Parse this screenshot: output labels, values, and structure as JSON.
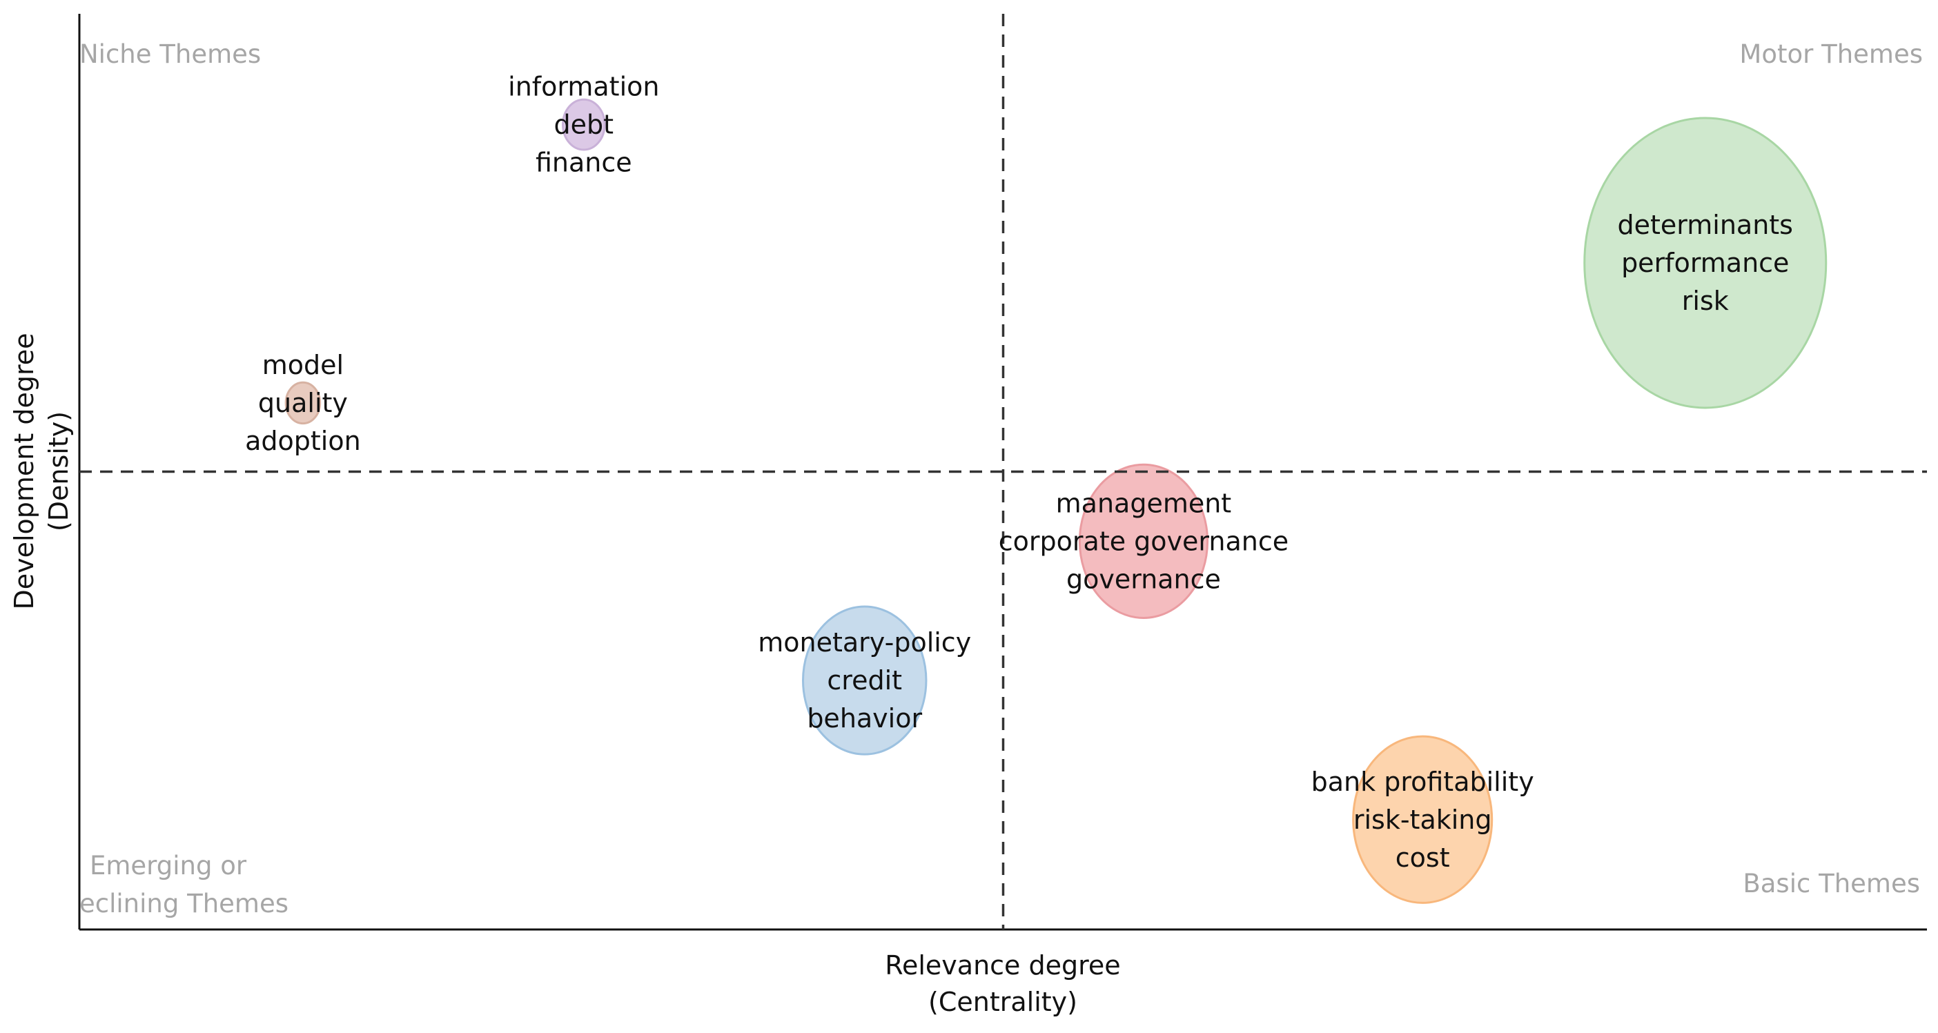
{
  "chart_data": {
    "type": "scatter",
    "title": "",
    "xlabel": [
      "Relevance degree",
      "(Centrality)"
    ],
    "ylabel": [
      "Development degree",
      "(Density)"
    ],
    "xlim": [
      0,
      1
    ],
    "ylim": [
      0,
      1
    ],
    "divider_x": 0.5,
    "divider_y": 0.5,
    "grid": false,
    "quadrants": {
      "top_left": [
        "Niche Themes"
      ],
      "top_right": [
        "Motor Themes"
      ],
      "bottom_left": [
        "Emerging or",
        "eclining Themes"
      ],
      "bottom_right": [
        "Basic Themes"
      ]
    },
    "clusters": [
      {
        "id": "info",
        "labels": [
          "information",
          "debt",
          "finance"
        ],
        "x": 0.273,
        "y": 0.879,
        "size": 0.03,
        "color": "#dcc9e6",
        "stroke": "#c9b1d8"
      },
      {
        "id": "model",
        "labels": [
          "model",
          "quality",
          "adoption"
        ],
        "x": 0.121,
        "y": 0.575,
        "size": 0.02,
        "color": "#e8cbbf",
        "stroke": "#d7b2a2"
      },
      {
        "id": "determinants",
        "labels": [
          "determinants",
          "performance",
          "risk"
        ],
        "x": 0.88,
        "y": 0.728,
        "size": 1.0,
        "color": "#cfe8cd",
        "stroke": "#a8d6a4"
      },
      {
        "id": "management",
        "labels": [
          "management",
          "corporate governance",
          "governance"
        ],
        "x": 0.576,
        "y": 0.424,
        "size": 0.28,
        "color": "#f4bcbf",
        "stroke": "#ea9ca1"
      },
      {
        "id": "monetary",
        "labels": [
          "monetary-policy",
          "credit",
          "behavior"
        ],
        "x": 0.425,
        "y": 0.272,
        "size": 0.26,
        "color": "#c7dbec",
        "stroke": "#9cc1e0"
      },
      {
        "id": "bank",
        "labels": [
          "bank profitability",
          "risk-taking",
          "cost"
        ],
        "x": 0.727,
        "y": 0.12,
        "size": 0.33,
        "color": "#fdd4ad",
        "stroke": "#f8b77c"
      }
    ]
  }
}
